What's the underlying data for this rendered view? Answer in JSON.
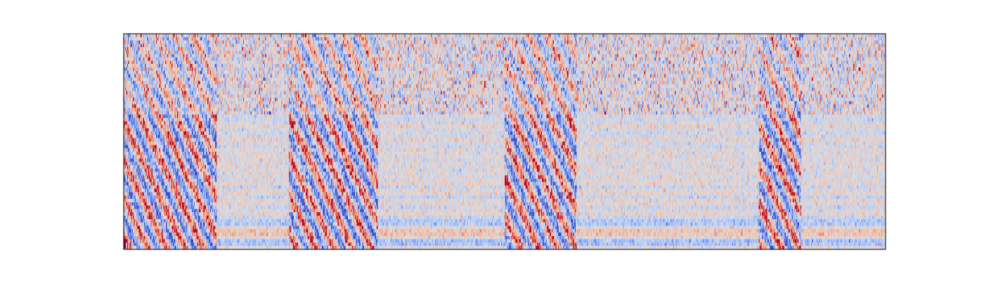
{
  "chart_data": {
    "type": "heatmap",
    "title": "",
    "xlabel": "",
    "ylabel": "",
    "colormap": "coolwarm",
    "colormap_stops": [
      "#3b4cc0",
      "#7396f5",
      "#b0cbfc",
      "#dddcdc",
      "#f6bfa6",
      "#ec8165",
      "#b40426"
    ],
    "neutral_color": "#dddcdc",
    "grid": false,
    "legend": "none",
    "axes_visible": false,
    "rows": 64,
    "columns": 900,
    "value_range": [
      -1,
      1
    ],
    "active_segments": [
      [
        0,
        110
      ],
      [
        195,
        300
      ],
      [
        450,
        535
      ],
      [
        750,
        800
      ]
    ],
    "quiet_band_rows": [
      [
        0,
        4
      ],
      [
        5,
        6
      ],
      [
        8,
        10
      ]
    ],
    "corner_marker_color": "#800060"
  }
}
